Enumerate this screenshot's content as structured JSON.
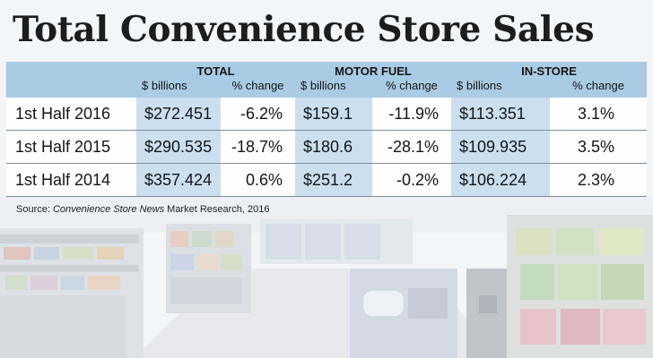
{
  "title": "Total Convenience Store Sales",
  "colors": {
    "header_bg": "#a9cbe3",
    "billions_col_bg": "#c7ddee",
    "title_text": "#1d1d1d"
  },
  "table": {
    "groups": [
      "TOTAL",
      "MOTOR FUEL",
      "IN-STORE"
    ],
    "subheaders": [
      "$ billions",
      "% change",
      "$ billions",
      "% change",
      "$ billions",
      "% change"
    ],
    "rows": [
      {
        "label": "1st Half 2016",
        "cells": [
          "$272.451",
          "-6.2%",
          "$159.1",
          "-11.9%",
          "$113.351",
          "3.1%"
        ]
      },
      {
        "label": "1st Half 2015",
        "cells": [
          "$290.535",
          "-18.7%",
          "$180.6",
          "-28.1%",
          "$109.935",
          "3.5%"
        ]
      },
      {
        "label": "1st Half 2014",
        "cells": [
          "$357.424",
          "0.6%",
          "$251.2",
          "-0.2%",
          "$106.224",
          "2.3%"
        ]
      }
    ]
  },
  "source": {
    "prefix": "Source: ",
    "publication": "Convenience Store News",
    "suffix": " Market Research, 2016"
  }
}
